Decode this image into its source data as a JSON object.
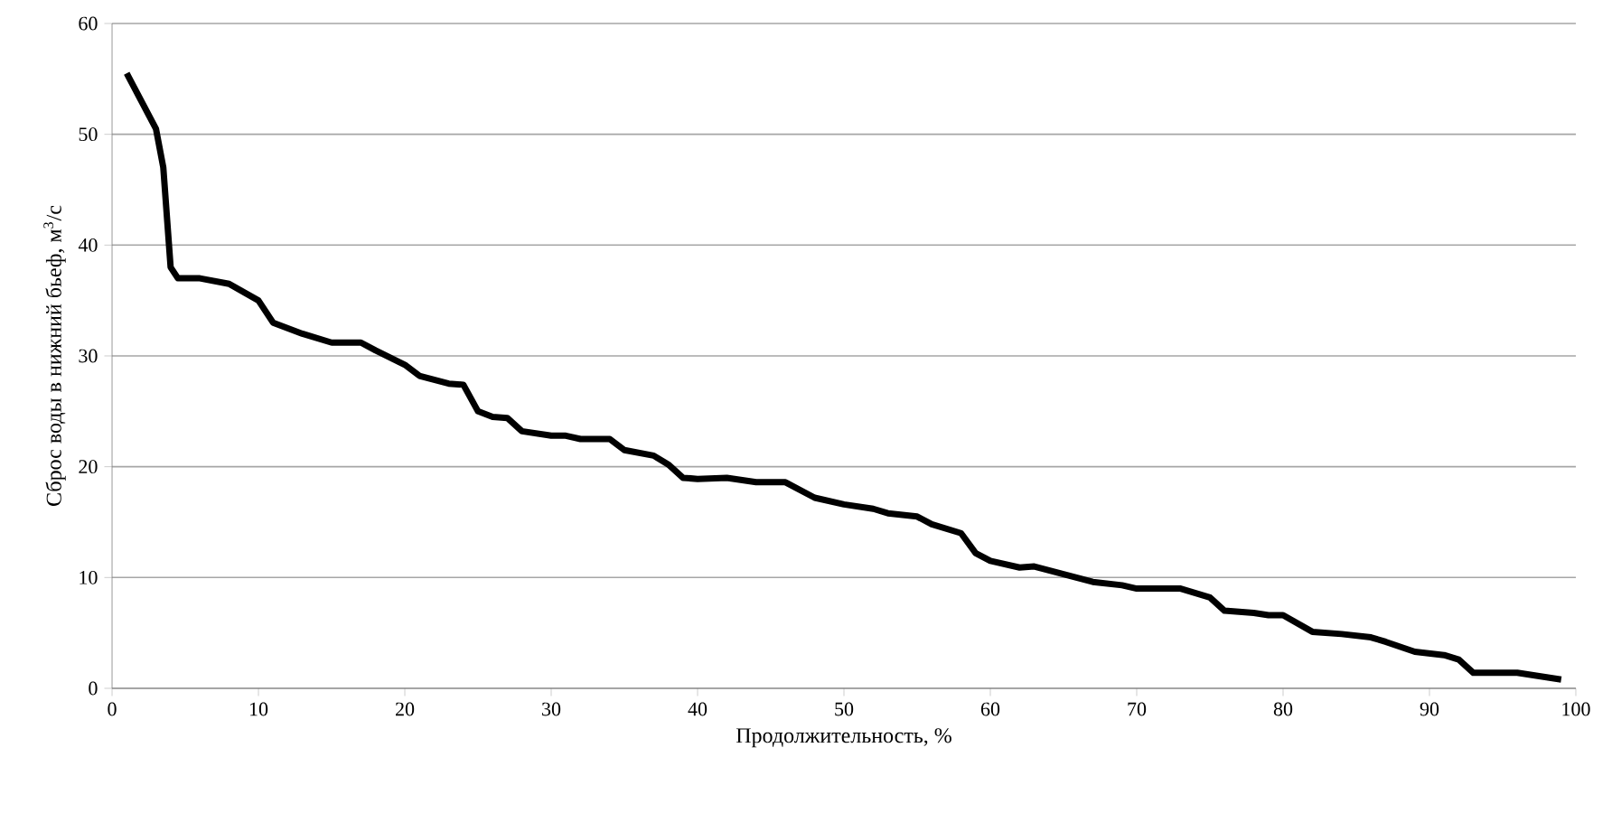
{
  "chart_data": {
    "type": "line",
    "xlabel": "Продолжительность, %",
    "ylabel": "Сброс воды в нижний бьеф, м$^{3}$/с",
    "x": [
      1,
      2,
      3,
      3.5,
      4,
      4.5,
      6,
      8,
      10,
      11,
      13,
      15,
      17,
      18,
      20,
      21,
      23,
      24,
      25,
      26,
      27,
      28,
      30,
      31,
      32,
      34,
      35,
      37,
      38,
      39,
      40,
      42,
      44,
      46,
      48,
      50,
      52,
      53,
      55,
      56,
      58,
      59,
      60,
      62,
      63,
      65,
      67,
      69,
      70,
      73,
      75,
      76,
      78,
      79,
      80,
      82,
      84,
      86,
      87,
      89,
      91,
      92,
      93,
      96,
      98,
      99
    ],
    "series": [
      {
        "color": "#000000",
        "values": [
          55.5,
          53,
          50.5,
          47,
          38,
          37,
          37,
          36.5,
          35,
          33,
          32,
          31.2,
          31.2,
          30.5,
          29.2,
          28.2,
          27.5,
          27.4,
          25,
          24.5,
          24.4,
          23.2,
          22.8,
          22.8,
          22.5,
          22.5,
          21.5,
          21,
          20.2,
          19,
          18.9,
          19,
          18.6,
          18.6,
          17.2,
          16.6,
          16.2,
          15.8,
          15.5,
          14.8,
          14,
          12.2,
          11.5,
          10.9,
          11,
          10.3,
          9.6,
          9.3,
          9,
          9,
          8.2,
          7,
          6.8,
          6.6,
          6.6,
          5.1,
          4.9,
          4.6,
          4.2,
          3.3,
          3,
          2.6,
          1.4,
          1.4,
          1,
          0.8
        ]
      }
    ],
    "xlim": [
      0,
      100
    ],
    "ylim": [
      0,
      60
    ],
    "xticks": [
      0,
      10,
      20,
      30,
      40,
      50,
      60,
      70,
      80,
      90,
      100
    ],
    "yticks": [
      0,
      10,
      20,
      30,
      40,
      50,
      60
    ],
    "grid": "y",
    "marker": "none",
    "line_style": "solid"
  }
}
